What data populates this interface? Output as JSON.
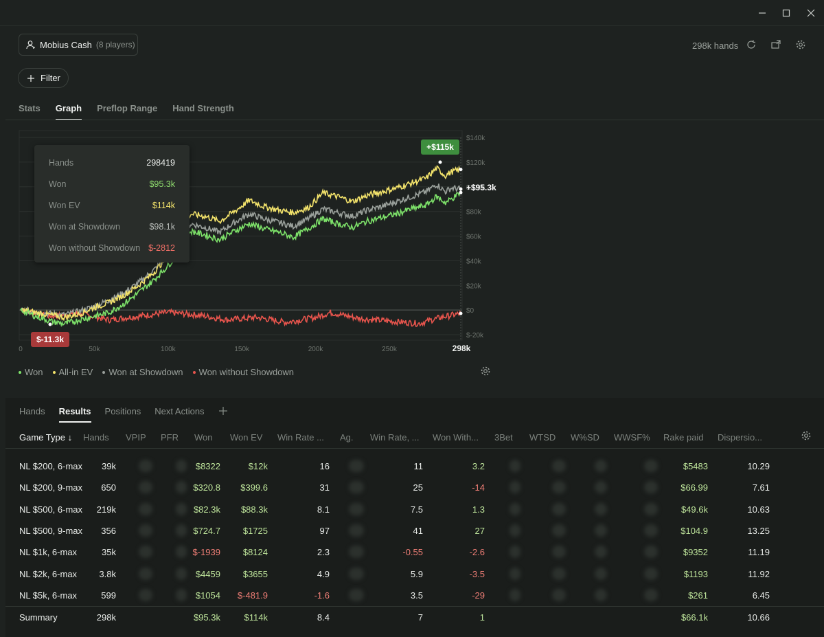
{
  "window": {
    "minimize_label": "",
    "maximize_label": "",
    "close_label": ""
  },
  "header": {
    "player_name": "Mobius Cash",
    "player_count": "(8 players)",
    "hands": "298k hands",
    "filter_label": "Filter"
  },
  "tabs": [
    "Stats",
    "Graph",
    "Preflop Range",
    "Hand Strength"
  ],
  "active_tab": "Graph",
  "tooltip": {
    "rows": [
      {
        "label": "Hands",
        "value": "298419",
        "color": "#e8ebe8"
      },
      {
        "label": "Won",
        "value": "$95.3k",
        "color": "#8fdc6e"
      },
      {
        "label": "Won EV",
        "value": "$114k",
        "color": "#f3e36b"
      },
      {
        "label": "Won at Showdown",
        "value": "$98.1k",
        "color": "#b8bcb8"
      },
      {
        "label": "Won without Showdown",
        "value": "$-2812",
        "color": "#ef6f66"
      }
    ]
  },
  "chart_data": {
    "type": "line",
    "x_ticks": [
      "0",
      "50k",
      "100k",
      "150k",
      "200k",
      "250k"
    ],
    "x_end_label": "298k",
    "y_ticks": [
      "$140k",
      "$120k",
      "$100k",
      "$80k",
      "$60k",
      "$40k",
      "$20k",
      "$0",
      "$-20k"
    ],
    "xlim": [
      0,
      298419
    ],
    "ylim": [
      -20000,
      140000
    ],
    "annotations": [
      {
        "text": "+$115k",
        "color": "#3e8e3e"
      },
      {
        "text": "$-11.3k",
        "color": "#a83a3a"
      },
      {
        "text": "+$95.3k",
        "color": ""
      }
    ],
    "series": [
      {
        "name": "Won",
        "color": "#7ee36a",
        "points": [
          [
            0,
            0
          ],
          [
            10000,
            -5000
          ],
          [
            20000,
            -9000
          ],
          [
            30000,
            -11300
          ],
          [
            40000,
            -8000
          ],
          [
            50000,
            -5000
          ],
          [
            60000,
            -2000
          ],
          [
            70000,
            5000
          ],
          [
            80000,
            14000
          ],
          [
            90000,
            24000
          ],
          [
            100000,
            36000
          ],
          [
            110000,
            50000
          ],
          [
            115000,
            64000
          ],
          [
            125000,
            61000
          ],
          [
            135000,
            57000
          ],
          [
            145000,
            64000
          ],
          [
            155000,
            70000
          ],
          [
            165000,
            66000
          ],
          [
            175000,
            63000
          ],
          [
            185000,
            59000
          ],
          [
            195000,
            66000
          ],
          [
            205000,
            74000
          ],
          [
            215000,
            70000
          ],
          [
            225000,
            67000
          ],
          [
            235000,
            72000
          ],
          [
            245000,
            75000
          ],
          [
            255000,
            78000
          ],
          [
            265000,
            82000
          ],
          [
            275000,
            85000
          ],
          [
            282000,
            92000
          ],
          [
            288000,
            87000
          ],
          [
            292000,
            90000
          ],
          [
            298419,
            95300
          ]
        ]
      },
      {
        "name": "All-in EV",
        "color": "#f3e36b",
        "points": [
          [
            0,
            0
          ],
          [
            10000,
            -2000
          ],
          [
            20000,
            -4000
          ],
          [
            30000,
            -6000
          ],
          [
            40000,
            -3000
          ],
          [
            50000,
            2000
          ],
          [
            60000,
            6000
          ],
          [
            70000,
            12000
          ],
          [
            80000,
            20000
          ],
          [
            90000,
            30000
          ],
          [
            100000,
            44000
          ],
          [
            110000,
            58000
          ],
          [
            115000,
            78000
          ],
          [
            125000,
            76000
          ],
          [
            135000,
            72000
          ],
          [
            145000,
            80000
          ],
          [
            155000,
            89000
          ],
          [
            165000,
            84000
          ],
          [
            175000,
            81000
          ],
          [
            185000,
            79000
          ],
          [
            195000,
            83000
          ],
          [
            205000,
            95000
          ],
          [
            215000,
            92000
          ],
          [
            225000,
            88000
          ],
          [
            235000,
            93000
          ],
          [
            245000,
            96000
          ],
          [
            255000,
            99000
          ],
          [
            265000,
            103000
          ],
          [
            275000,
            107000
          ],
          [
            282000,
            115000
          ],
          [
            288000,
            109000
          ],
          [
            292000,
            112000
          ],
          [
            298419,
            114000
          ]
        ]
      },
      {
        "name": "Won at Showdown",
        "color": "#9aa09b",
        "points": [
          [
            0,
            0
          ],
          [
            10000,
            -1000
          ],
          [
            20000,
            -3000
          ],
          [
            30000,
            -4000
          ],
          [
            40000,
            -1000
          ],
          [
            50000,
            3000
          ],
          [
            60000,
            8000
          ],
          [
            70000,
            14000
          ],
          [
            80000,
            22000
          ],
          [
            90000,
            32000
          ],
          [
            100000,
            44000
          ],
          [
            110000,
            56000
          ],
          [
            115000,
            70000
          ],
          [
            125000,
            67000
          ],
          [
            135000,
            63000
          ],
          [
            145000,
            71000
          ],
          [
            155000,
            78000
          ],
          [
            165000,
            74000
          ],
          [
            175000,
            71000
          ],
          [
            185000,
            68000
          ],
          [
            195000,
            74000
          ],
          [
            205000,
            82000
          ],
          [
            215000,
            79000
          ],
          [
            225000,
            76000
          ],
          [
            235000,
            81000
          ],
          [
            245000,
            84000
          ],
          [
            255000,
            88000
          ],
          [
            265000,
            92000
          ],
          [
            275000,
            96000
          ],
          [
            282000,
            102000
          ],
          [
            288000,
            96000
          ],
          [
            292000,
            99000
          ],
          [
            298419,
            98100
          ]
        ]
      },
      {
        "name": "Won without Showdown",
        "color": "#e8554d",
        "points": [
          [
            0,
            0
          ],
          [
            20000,
            -5000
          ],
          [
            40000,
            -3000
          ],
          [
            60000,
            -8000
          ],
          [
            80000,
            -5000
          ],
          [
            100000,
            -2000
          ],
          [
            120000,
            -4000
          ],
          [
            140000,
            -8000
          ],
          [
            160000,
            -6000
          ],
          [
            180000,
            -10000
          ],
          [
            200000,
            -6000
          ],
          [
            210000,
            -2000
          ],
          [
            230000,
            -7000
          ],
          [
            250000,
            -9000
          ],
          [
            270000,
            -11000
          ],
          [
            285000,
            -6000
          ],
          [
            298419,
            -2812
          ]
        ]
      }
    ]
  },
  "legend": [
    {
      "label": "Won",
      "color": "#7ee36a"
    },
    {
      "label": "All-in EV",
      "color": "#f3e36b"
    },
    {
      "label": "Won at Showdown",
      "color": "#9aa09b"
    },
    {
      "label": "Won without Showdown",
      "color": "#e8554d"
    }
  ],
  "bottom_tabs": [
    "Hands",
    "Results",
    "Positions",
    "Next Actions"
  ],
  "active_bottom_tab": "Results",
  "table": {
    "columns": [
      "Game Type ↓",
      "Hands",
      "VPIP",
      "PFR",
      "Won",
      "Won EV",
      "Win Rate ...",
      "Ag.",
      "Win Rate, ...",
      "Won With...",
      "3Bet",
      "WTSD",
      "W%SD",
      "WWSF%",
      "Rake paid",
      "Dispersio..."
    ],
    "rows": [
      {
        "game": "NL $200, 6-max",
        "hands": "39k",
        "won": "$8322",
        "won_ev": "$12k",
        "wr": "16",
        "wr2": "11",
        "wws": "3.2",
        "rake": "$5483",
        "disp": "10.29"
      },
      {
        "game": "NL $200, 9-max",
        "hands": "650",
        "won": "$320.8",
        "won_ev": "$399.6",
        "wr": "31",
        "wr2": "25",
        "wws": "-14",
        "rake": "$66.99",
        "disp": "7.61"
      },
      {
        "game": "NL $500, 6-max",
        "hands": "219k",
        "won": "$82.3k",
        "won_ev": "$88.3k",
        "wr": "8.1",
        "wr2": "7.5",
        "wws": "1.3",
        "rake": "$49.6k",
        "disp": "10.63"
      },
      {
        "game": "NL $500, 9-max",
        "hands": "356",
        "won": "$724.7",
        "won_ev": "$1725",
        "wr": "97",
        "wr2": "41",
        "wws": "27",
        "rake": "$104.9",
        "disp": "13.25"
      },
      {
        "game": "NL $1k, 6-max",
        "hands": "35k",
        "won": "$-1939",
        "won_ev": "$8124",
        "wr": "2.3",
        "wr2": "-0.55",
        "wws": "-2.6",
        "rake": "$9352",
        "disp": "11.19"
      },
      {
        "game": "NL $2k, 6-max",
        "hands": "3.8k",
        "won": "$4459",
        "won_ev": "$3655",
        "wr": "4.9",
        "wr2": "5.9",
        "wws": "-3.5",
        "rake": "$1193",
        "disp": "11.92"
      },
      {
        "game": "NL $5k, 6-max",
        "hands": "599",
        "won": "$1054",
        "won_ev": "$-481.9",
        "wr": "-1.6",
        "wr2": "3.5",
        "wws": "-29",
        "rake": "$261",
        "disp": "6.45"
      }
    ],
    "summary": {
      "game": "Summary",
      "hands": "298k",
      "won": "$95.3k",
      "won_ev": "$114k",
      "wr": "8.4",
      "wr2": "7",
      "wws": "1",
      "rake": "$66.1k",
      "disp": "10.66"
    }
  }
}
